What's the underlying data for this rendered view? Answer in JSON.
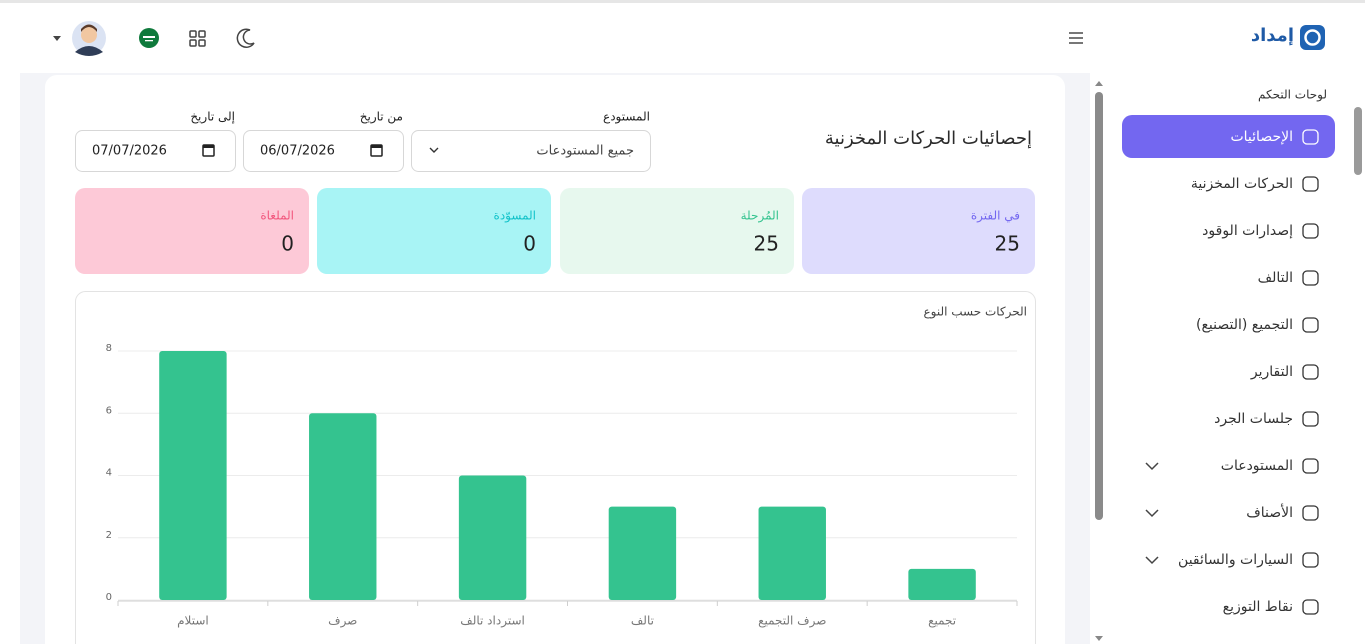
{
  "sidebar": {
    "brand": "إمداد",
    "section": "لوحات التحكم",
    "items": [
      {
        "label": "الإحصائيات",
        "active": true
      },
      {
        "label": "الحركات المخزنية"
      },
      {
        "label": "إصدارات الوقود"
      },
      {
        "label": "التالف"
      },
      {
        "label": "التجميع (التصنيع)"
      },
      {
        "label": "التقارير"
      },
      {
        "label": "جلسات الجرد"
      },
      {
        "label": "المستودعات",
        "expandable": true
      },
      {
        "label": "الأصناف",
        "expandable": true
      },
      {
        "label": "السيارات والسائقين",
        "expandable": true
      },
      {
        "label": "نقاط التوزيع"
      }
    ]
  },
  "page": {
    "title": "إحصائيات الحركات المخزنية",
    "filters": [
      {
        "label": "المستودع",
        "value": "جميع المستودعات",
        "kind": "select"
      },
      {
        "label": "من تاريخ",
        "value": "06/07/2026",
        "kind": "date"
      },
      {
        "label": "إلى تاريخ",
        "value": "07/07/2026",
        "kind": "date"
      }
    ],
    "stats": [
      {
        "label": "في الفترة",
        "value": 25,
        "color": "#7367f0",
        "background": "#dedcfd"
      },
      {
        "label": "المُرحلة",
        "value": 25,
        "color": "#34c38f",
        "background": "#e7f8ee"
      },
      {
        "label": "المسوّدة",
        "value": 0,
        "color": "#12c2c9",
        "background": "#a8f4f5"
      },
      {
        "label": "الملغاة",
        "value": 0,
        "color": "#f2567d",
        "background": "#fdc9d7"
      }
    ]
  },
  "chart_data": {
    "type": "bar",
    "title": "الحركات حسب النوع",
    "categories": [
      "استلام",
      "صرف",
      "استرداد تالف",
      "تالف",
      "صرف التجميع",
      "تجميع"
    ],
    "values": [
      8,
      6,
      4,
      3,
      3,
      1
    ],
    "color": "#34c38f",
    "ylim": [
      0,
      8
    ],
    "yticks": [
      0,
      2,
      4,
      6,
      8
    ],
    "grid": true
  }
}
